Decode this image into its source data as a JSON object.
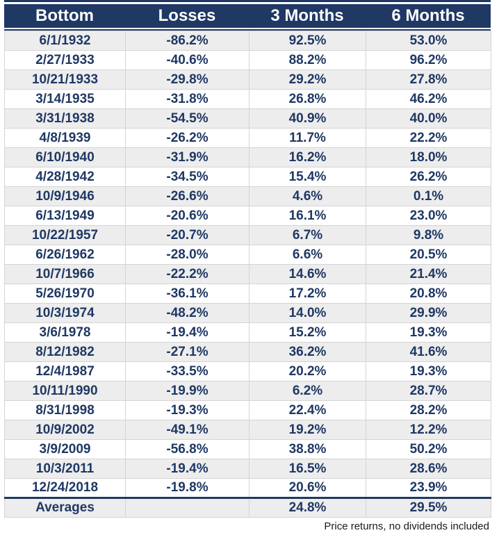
{
  "chart_data": {
    "type": "table",
    "title": "",
    "columns": [
      "Bottom",
      "Losses",
      "3 Months",
      "6 Months"
    ],
    "rows": [
      [
        "6/1/1932",
        "-86.2%",
        "92.5%",
        "53.0%"
      ],
      [
        "2/27/1933",
        "-40.6%",
        "88.2%",
        "96.2%"
      ],
      [
        "10/21/1933",
        "-29.8%",
        "29.2%",
        "27.8%"
      ],
      [
        "3/14/1935",
        "-31.8%",
        "26.8%",
        "46.2%"
      ],
      [
        "3/31/1938",
        "-54.5%",
        "40.9%",
        "40.0%"
      ],
      [
        "4/8/1939",
        "-26.2%",
        "11.7%",
        "22.2%"
      ],
      [
        "6/10/1940",
        "-31.9%",
        "16.2%",
        "18.0%"
      ],
      [
        "4/28/1942",
        "-34.5%",
        "15.4%",
        "26.2%"
      ],
      [
        "10/9/1946",
        "-26.6%",
        "4.6%",
        "0.1%"
      ],
      [
        "6/13/1949",
        "-20.6%",
        "16.1%",
        "23.0%"
      ],
      [
        "10/22/1957",
        "-20.7%",
        "6.7%",
        "9.8%"
      ],
      [
        "6/26/1962",
        "-28.0%",
        "6.6%",
        "20.5%"
      ],
      [
        "10/7/1966",
        "-22.2%",
        "14.6%",
        "21.4%"
      ],
      [
        "5/26/1970",
        "-36.1%",
        "17.2%",
        "20.8%"
      ],
      [
        "10/3/1974",
        "-48.2%",
        "14.0%",
        "29.9%"
      ],
      [
        "3/6/1978",
        "-19.4%",
        "15.2%",
        "19.3%"
      ],
      [
        "8/12/1982",
        "-27.1%",
        "36.2%",
        "41.6%"
      ],
      [
        "12/4/1987",
        "-33.5%",
        "20.2%",
        "19.3%"
      ],
      [
        "10/11/1990",
        "-19.9%",
        "6.2%",
        "28.7%"
      ],
      [
        "8/31/1998",
        "-19.3%",
        "22.4%",
        "28.2%"
      ],
      [
        "10/9/2002",
        "-49.1%",
        "19.2%",
        "12.2%"
      ],
      [
        "3/9/2009",
        "-56.8%",
        "38.8%",
        "50.2%"
      ],
      [
        "10/3/2011",
        "-19.4%",
        "16.5%",
        "28.6%"
      ],
      [
        "12/24/2018",
        "-19.8%",
        "20.6%",
        "23.9%"
      ]
    ],
    "averages_row": [
      "Averages",
      "",
      "24.8%",
      "29.5%"
    ],
    "footnote": "Price returns, no dividends included"
  },
  "colors": {
    "header_bg": "#1F3864",
    "header_text": "#FFFFFF",
    "cell_text": "#1F3864",
    "stripe_bg": "#EDEDED",
    "grid_line": "#D4D4D4",
    "footnote_text": "#1A1A1A"
  }
}
